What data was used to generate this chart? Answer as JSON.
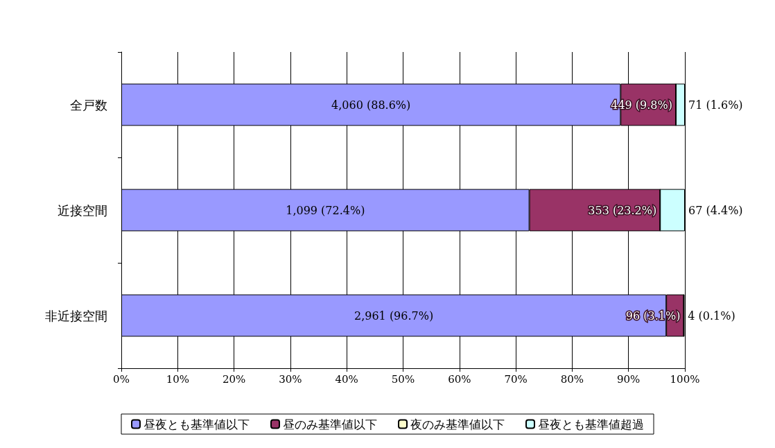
{
  "chart_data": {
    "type": "bar",
    "orientation": "horizontal",
    "stacked": true,
    "categories": [
      "全戸数",
      "近接空間",
      "非近接空間"
    ],
    "series": [
      {
        "name": "昼夜とも基準値以下",
        "color": "#9999ff",
        "values": [
          88.6,
          72.4,
          96.7
        ],
        "value_labels": [
          "4,060 (88.6%)",
          "1,099 (72.4%)",
          "2,961 (96.7%)"
        ]
      },
      {
        "name": "昼のみ基準値以下",
        "color": "#993366",
        "values": [
          9.8,
          23.2,
          3.1
        ],
        "value_labels": [
          "449 (9.8%)",
          "353 (23.2%)",
          "96 (3.1%)"
        ]
      },
      {
        "name": "夜のみ基準値以下",
        "color": "#ffffcc",
        "values": [
          0,
          0,
          0
        ]
      },
      {
        "name": "昼夜とも基準値超過",
        "color": "#ccffff",
        "values": [
          1.6,
          4.4,
          0.1
        ],
        "value_labels": [
          "71 (1.6%)",
          "67 (4.4%)",
          "4 (0.1%)"
        ]
      }
    ],
    "xlim": [
      0,
      100
    ],
    "xticks": [
      {
        "value": 0,
        "label": "0%"
      },
      {
        "value": 10,
        "label": "10%"
      },
      {
        "value": 20,
        "label": "20%"
      },
      {
        "value": 30,
        "label": "30%"
      },
      {
        "value": 40,
        "label": "40%"
      },
      {
        "value": 50,
        "label": "50%"
      },
      {
        "value": 60,
        "label": "60%"
      },
      {
        "value": 70,
        "label": "70%"
      },
      {
        "value": 80,
        "label": "80%"
      },
      {
        "value": 90,
        "label": "90%"
      },
      {
        "value": 100,
        "label": "100%"
      }
    ],
    "grid": "x",
    "legend": "bottom"
  }
}
